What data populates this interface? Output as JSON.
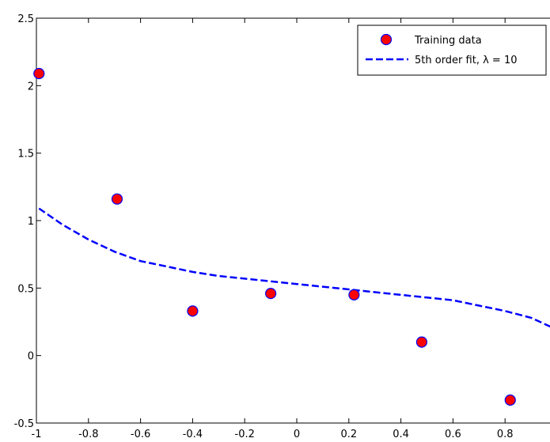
{
  "chart_data": {
    "type": "scatter",
    "xlim": [
      -1,
      1
    ],
    "ylim": [
      -0.5,
      2.5
    ],
    "x_ticks": [
      -1,
      -0.8,
      -0.6,
      -0.4,
      -0.2,
      0,
      0.2,
      0.4,
      0.6,
      0.8
    ],
    "x_tick_labels": [
      "-1",
      "-0.8",
      "-0.6",
      "-0.4",
      "-0.2",
      "0",
      "0.2",
      "0.4",
      "0.6",
      "0.8"
    ],
    "y_ticks": [
      -0.5,
      0,
      0.5,
      1,
      1.5,
      2,
      2.5
    ],
    "y_tick_labels": [
      "-0.5",
      "0",
      "0.5",
      "1",
      "1.5",
      "2",
      "2.5"
    ],
    "grid": false,
    "legend_placement": "top-right",
    "series": [
      {
        "name": "Training data",
        "kind": "markers",
        "marker_fill": "#ff0000",
        "marker_edge": "#0000ff",
        "x": [
          -0.99,
          -0.69,
          -0.4,
          -0.1,
          0.22,
          0.48,
          0.82
        ],
        "y": [
          2.09,
          1.16,
          0.33,
          0.46,
          0.45,
          0.1,
          -0.33
        ]
      },
      {
        "name": "5th order fit, λ = 10",
        "kind": "dashed-line",
        "color": "#0000ff",
        "x": [
          -0.99,
          -0.9,
          -0.8,
          -0.7,
          -0.6,
          -0.5,
          -0.4,
          -0.3,
          -0.2,
          -0.1,
          0.0,
          0.1,
          0.2,
          0.3,
          0.4,
          0.5,
          0.6,
          0.7,
          0.8,
          0.9,
          0.99
        ],
        "y": [
          1.09,
          0.97,
          0.86,
          0.77,
          0.7,
          0.66,
          0.62,
          0.59,
          0.57,
          0.55,
          0.53,
          0.51,
          0.49,
          0.47,
          0.45,
          0.43,
          0.41,
          0.37,
          0.33,
          0.28,
          0.2
        ]
      }
    ]
  }
}
